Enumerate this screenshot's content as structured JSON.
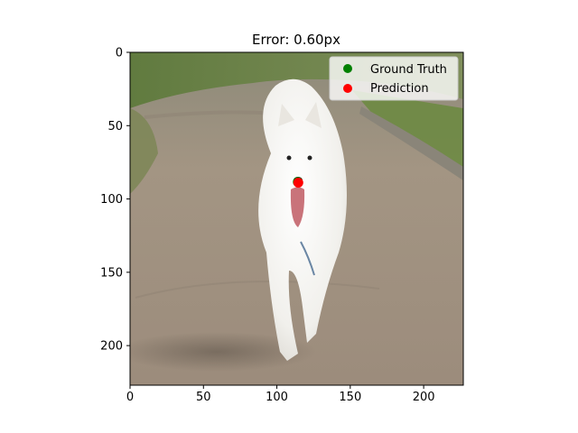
{
  "figure": {
    "title": "Error: 0.60px"
  },
  "axes": {
    "x_ticks": [
      0,
      50,
      100,
      150,
      200
    ],
    "y_ticks": [
      0,
      50,
      100,
      150,
      200
    ],
    "x_range": [
      0,
      227
    ],
    "y_range": [
      0,
      227
    ],
    "y_inverted": true
  },
  "legend": {
    "placement": "top-right",
    "entries": [
      {
        "label": "Ground Truth",
        "color": "#008000"
      },
      {
        "label": "Prediction",
        "color": "#ff0000"
      }
    ]
  },
  "points": {
    "ground_truth": {
      "x": 114.3,
      "y": 88.4,
      "color": "#008000"
    },
    "prediction": {
      "x": 114.6,
      "y": 88.9,
      "color": "#ff0000"
    }
  },
  "image": {
    "subject": "white samoyed dog walking on a dirt path, tongue out",
    "colors": {
      "grass": "#6f8a4a",
      "path": "#a89a8c",
      "dog": "#f3f2ef",
      "tongue": "#c9737a",
      "nose": "#1a1a1a"
    }
  }
}
